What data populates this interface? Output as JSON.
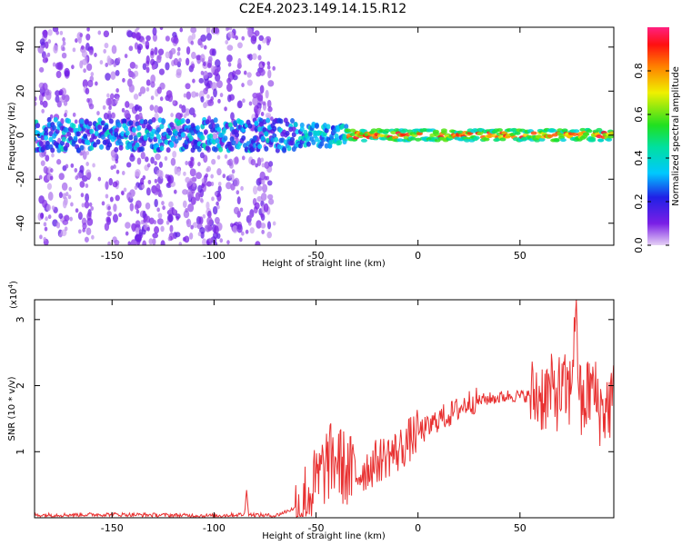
{
  "title": "C2E4.2023.149.14.15.R12",
  "colorbar": {
    "label": "Normalized spectral amplitude",
    "ticks": [
      "0.0",
      "0.2",
      "0.4",
      "0.6",
      "0.8"
    ],
    "range": [
      0,
      1
    ]
  },
  "chart_data": [
    {
      "type": "heatmap",
      "name": "spectrogram",
      "xlabel": "Height of straight line (km)",
      "ylabel": "Frequency (Hz)",
      "xlim": [
        -188,
        96
      ],
      "ylim": [
        -50,
        49
      ],
      "xticks": [
        -150,
        -100,
        -50,
        0,
        50
      ],
      "yticks": [
        -40,
        -20,
        0,
        20,
        40
      ],
      "description_of_signal": {
        "noise_region_x": [
          -188,
          -70
        ],
        "band_center_hz": 0,
        "band_halfwidth_hz": [
          6,
          2
        ],
        "strong_band_x": [
          -35,
          96
        ]
      }
    },
    {
      "type": "line",
      "name": "snr",
      "xlabel": "Height of straight line (km)",
      "ylabel": "SNR (10 * v/v)",
      "y_multiplier_label": "(x10",
      "y_multiplier_exp": "4",
      "y_multiplier_close": ")",
      "xlim": [
        -188,
        96
      ],
      "ylim": [
        0,
        3.3
      ],
      "xticks": [
        -150,
        -100,
        -50,
        0,
        50
      ],
      "yticks": [
        1,
        2,
        3
      ],
      "color": "#e83030",
      "x": [
        -188,
        -150,
        -100,
        -85,
        -84,
        -83,
        -70,
        -60,
        -55,
        -50,
        -45,
        -40,
        -35,
        -30,
        -25,
        -20,
        -15,
        -10,
        -5,
        0,
        5,
        10,
        15,
        20,
        25,
        30,
        35,
        40,
        45,
        50,
        55,
        60,
        65,
        70,
        75,
        77,
        80,
        85,
        90,
        96
      ],
      "y": [
        0.04,
        0.05,
        0.03,
        0.05,
        0.45,
        0.05,
        0.03,
        0.15,
        0.3,
        0.5,
        0.8,
        0.9,
        0.7,
        0.65,
        0.75,
        0.85,
        0.95,
        1.0,
        1.15,
        1.3,
        1.35,
        1.5,
        1.55,
        1.65,
        1.75,
        1.78,
        1.8,
        1.82,
        1.85,
        1.84,
        1.85,
        1.86,
        1.88,
        1.9,
        1.9,
        3.2,
        1.6,
        2.0,
        1.6,
        1.8
      ]
    }
  ]
}
